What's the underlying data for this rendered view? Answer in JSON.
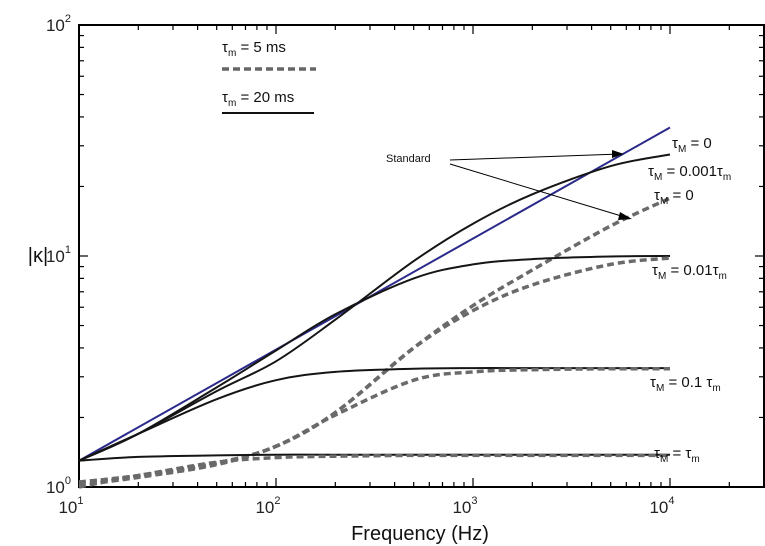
{
  "chart_data": {
    "type": "line",
    "xscale": "log",
    "yscale": "log",
    "xlim": [
      10,
      30000
    ],
    "ylim": [
      1,
      100
    ],
    "xlabel": "Frequency (Hz)",
    "ylabel": "|κ|",
    "x_ticks": [
      {
        "base": "10",
        "exp": "1"
      },
      {
        "base": "10",
        "exp": "2"
      },
      {
        "base": "10",
        "exp": "3"
      },
      {
        "base": "10",
        "exp": "4"
      }
    ],
    "y_ticks": [
      {
        "base": "10",
        "exp": "0"
      },
      {
        "base": "10",
        "exp": "1"
      },
      {
        "base": "10",
        "exp": "2"
      }
    ],
    "legend": {
      "placement": "top-left",
      "items": [
        {
          "sym": "τ",
          "sub": "m",
          "text": " = 5 ms",
          "style": "dashed"
        },
        {
          "sym": "τ",
          "sub": "m",
          "text": " = 20 ms",
          "style": "solid"
        }
      ]
    },
    "annotation_standard": "Standard",
    "series_labels": [
      {
        "sym": "τ",
        "sub": "M",
        "text": " = 0"
      },
      {
        "sym": "τ",
        "sub": "M",
        "text": " = 0.001τ",
        "sub2": "m"
      },
      {
        "sym": "τ",
        "sub": "M",
        "text": " = 0"
      },
      {
        "sym": "τ",
        "sub": "M",
        "text": " = 0.01τ",
        "sub2": "m"
      },
      {
        "sym": "τ",
        "sub": "M",
        "text": " = 0.1 τ",
        "sub2": "m"
      },
      {
        "sym": "τ",
        "sub": "M",
        "text": " = τ",
        "sub2": "m"
      }
    ],
    "series": [
      {
        "style": "solid-blue",
        "x": [
          10,
          10000
        ],
        "y": [
          1.3,
          36
        ]
      },
      {
        "style": "solid",
        "x": [
          10,
          20,
          50,
          100,
          200,
          500,
          1000,
          2000,
          5000,
          10000
        ],
        "y": [
          1.3,
          1.7,
          2.6,
          3.5,
          5.3,
          9.5,
          13.8,
          18.5,
          24.5,
          27.5
        ]
      },
      {
        "style": "dashed",
        "x": [
          10,
          20,
          50,
          100,
          200,
          500,
          1000,
          2000,
          5000,
          10000
        ],
        "y": [
          1.05,
          1.12,
          1.27,
          1.5,
          2.1,
          4.0,
          6.1,
          8.7,
          13.5,
          17.8
        ]
      },
      {
        "style": "solid",
        "x": [
          10,
          20,
          50,
          100,
          200,
          500,
          1000,
          2000,
          5000,
          10000
        ],
        "y": [
          1.3,
          1.7,
          2.7,
          3.9,
          5.6,
          8.0,
          9.2,
          9.7,
          9.95,
          10.0
        ]
      },
      {
        "style": "dashed",
        "x": [
          10,
          20,
          50,
          100,
          200,
          500,
          1000,
          2000,
          5000,
          10000
        ],
        "y": [
          1.05,
          1.12,
          1.27,
          1.5,
          2.1,
          4.0,
          5.8,
          7.5,
          9.2,
          9.8
        ]
      },
      {
        "style": "solid",
        "x": [
          10,
          20,
          50,
          100,
          200,
          500,
          1000,
          2000,
          5000,
          10000
        ],
        "y": [
          1.3,
          1.7,
          2.4,
          2.9,
          3.15,
          3.25,
          3.27,
          3.27,
          3.27,
          3.27
        ]
      },
      {
        "style": "dashed",
        "x": [
          10,
          20,
          50,
          100,
          200,
          500,
          1000,
          2000,
          5000,
          10000
        ],
        "y": [
          1.02,
          1.1,
          1.25,
          1.5,
          2.05,
          2.9,
          3.15,
          3.22,
          3.25,
          3.25
        ]
      },
      {
        "style": "solid",
        "x": [
          10,
          20,
          50,
          100,
          200,
          500,
          1000,
          10000
        ],
        "y": [
          1.3,
          1.35,
          1.37,
          1.38,
          1.38,
          1.38,
          1.38,
          1.38
        ]
      },
      {
        "style": "dashed",
        "x": [
          10,
          20,
          50,
          100,
          200,
          500,
          1000,
          10000
        ],
        "y": [
          1.0,
          1.12,
          1.28,
          1.34,
          1.36,
          1.37,
          1.37,
          1.37
        ]
      }
    ]
  }
}
